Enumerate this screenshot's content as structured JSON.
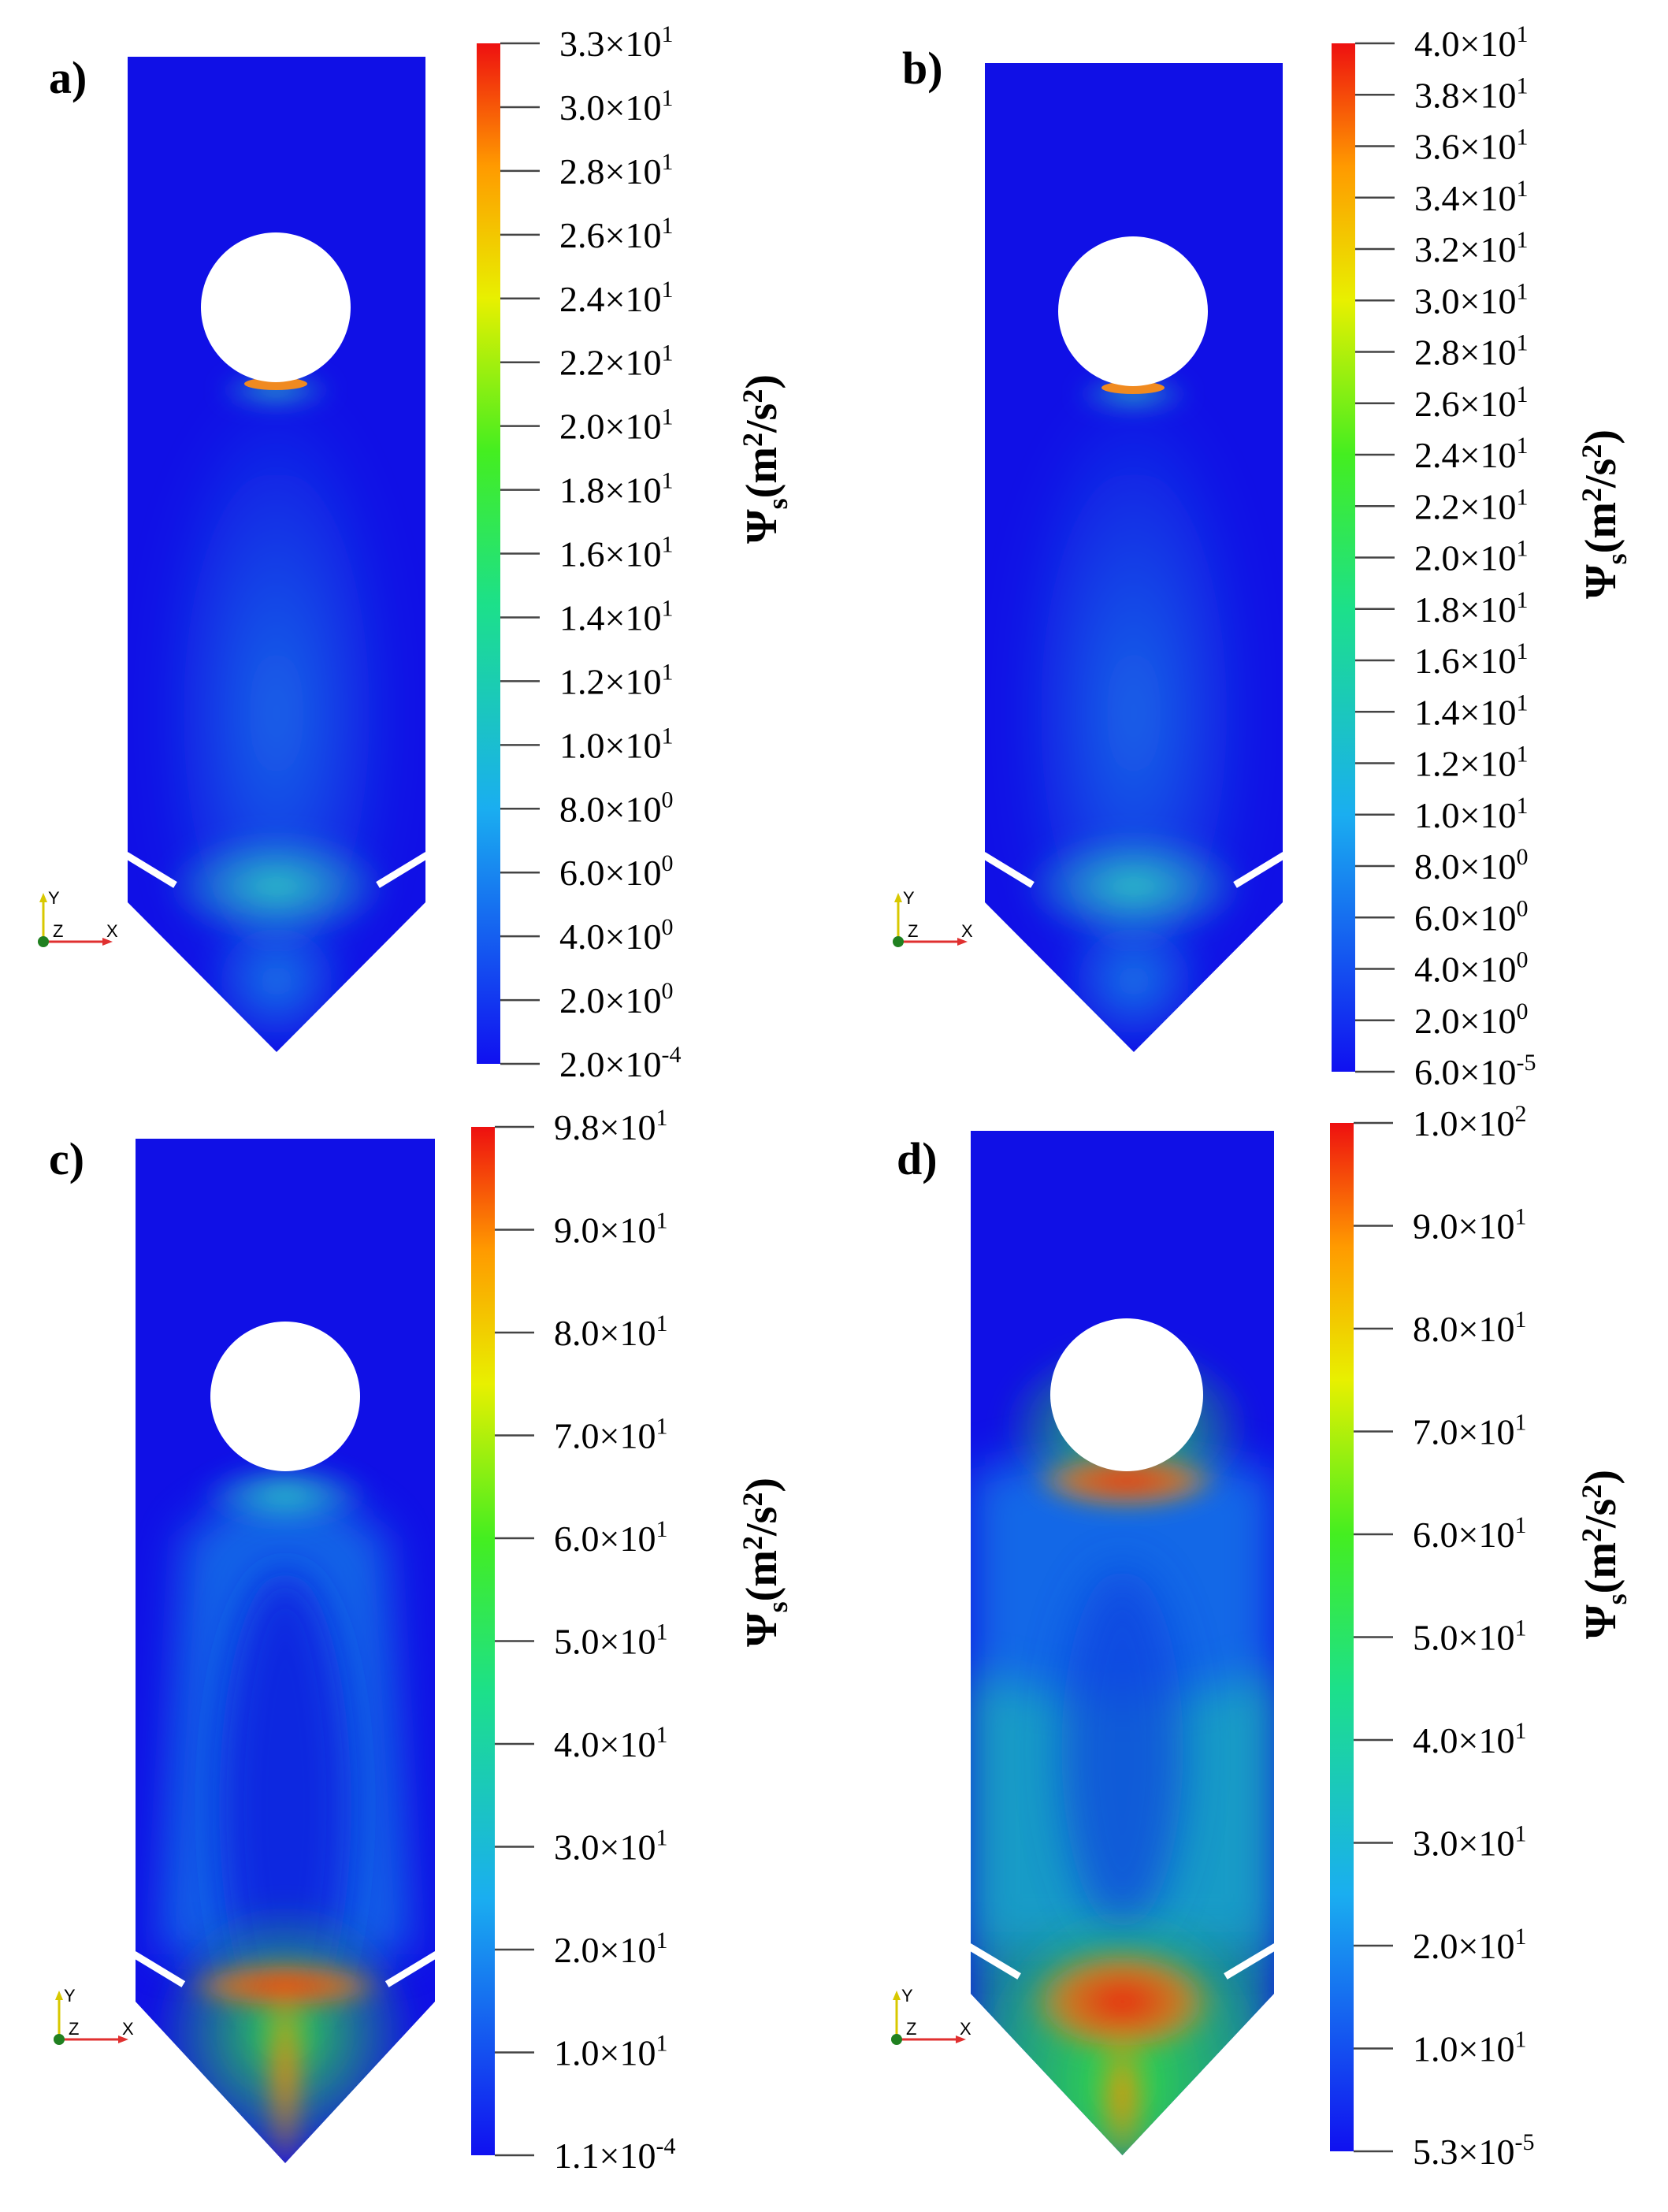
{
  "panels": [
    {
      "id": "a",
      "label": "a)",
      "field": "low",
      "ticks": [
        "3.3×10^1",
        "3.0×10^1",
        "2.8×10^1",
        "2.6×10^1",
        "2.4×10^1",
        "2.2×10^1",
        "2.0×10^1",
        "1.8×10^1",
        "1.6×10^1",
        "1.4×10^1",
        "1.2×10^1",
        "1.0×10^1",
        "8.0×10^0",
        "6.0×10^0",
        "4.0×10^0",
        "2.0×10^0",
        "2.0×10^-4"
      ]
    },
    {
      "id": "b",
      "label": "b)",
      "field": "low2",
      "ticks": [
        "4.0×10^1",
        "3.8×10^1",
        "3.6×10^1",
        "3.4×10^1",
        "3.2×10^1",
        "3.0×10^1",
        "2.8×10^1",
        "2.6×10^1",
        "2.4×10^1",
        "2.2×10^1",
        "2.0×10^1",
        "1.8×10^1",
        "1.6×10^1",
        "1.4×10^1",
        "1.2×10^1",
        "1.0×10^1",
        "8.0×10^0",
        "6.0×10^0",
        "4.0×10^0",
        "2.0×10^0",
        "6.0×10^-5"
      ]
    },
    {
      "id": "c",
      "label": "c)",
      "field": "mid",
      "ticks": [
        "9.8×10^1",
        "9.0×10^1",
        "8.0×10^1",
        "7.0×10^1",
        "6.0×10^1",
        "5.0×10^1",
        "4.0×10^1",
        "3.0×10^1",
        "2.0×10^1",
        "1.0×10^1",
        "1.1×10^-4"
      ]
    },
    {
      "id": "d",
      "label": "d)",
      "field": "high",
      "ticks": [
        "1.0×10^2",
        "9.0×10^1",
        "8.0×10^1",
        "7.0×10^1",
        "6.0×10^1",
        "5.0×10^1",
        "4.0×10^1",
        "3.0×10^1",
        "2.0×10^1",
        "1.0×10^1",
        "5.3×10^-5"
      ]
    }
  ],
  "colorbar_title": {
    "symbol": "Ψ",
    "subscript": "s",
    "units_pre": "(m",
    "units_sup": "2",
    "units_mid": "/s",
    "units_sup2": "2",
    "units_post": ")"
  },
  "axes_triad": {
    "y": "Y",
    "z": "Z",
    "x": "X"
  },
  "colors": {
    "low": "#0a1ae0",
    "cyan": "#19b8e6",
    "green": "#22e022",
    "yellow": "#f0f000",
    "red": "#ee1a0e",
    "background": "#ffffff"
  }
}
